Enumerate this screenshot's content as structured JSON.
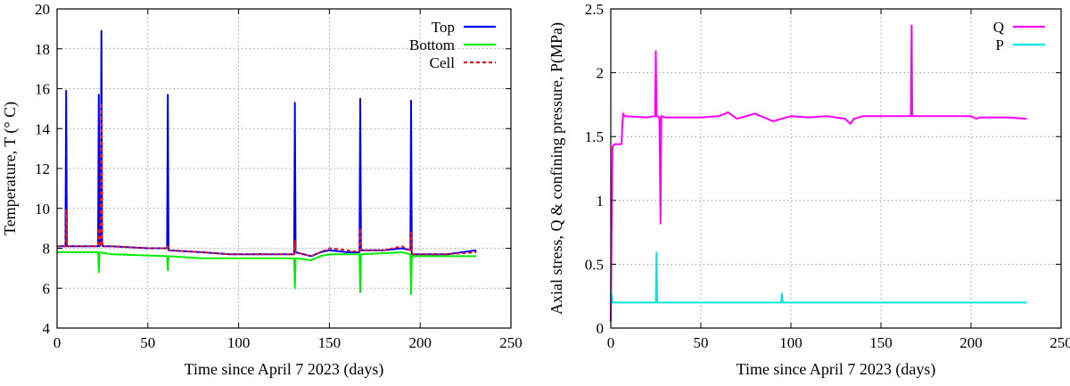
{
  "chart_data": [
    {
      "type": "line",
      "xlabel": "Time since April 7 2023 (days)",
      "ylabel": "Temperature, T (° C)",
      "xlim": [
        0,
        250
      ],
      "ylim": [
        4,
        20
      ],
      "xticks": [
        "0",
        "50",
        "100",
        "150",
        "200",
        "250"
      ],
      "yticks": [
        "4",
        "6",
        "8",
        "10",
        "12",
        "14",
        "16",
        "18",
        "20"
      ],
      "grid": true,
      "legend_position": "top-right",
      "series": [
        {
          "name": "Top",
          "color": "#0000ff",
          "style": "solid",
          "x": [
            0,
            4.6,
            5,
            5.4,
            20,
            22.6,
            23,
            23.4,
            24,
            24.4,
            24.8,
            25.2,
            30,
            50,
            60.6,
            61,
            61.4,
            80,
            95,
            105,
            120,
            130.6,
            131,
            131.4,
            140,
            145,
            150,
            160,
            166.6,
            167,
            167.4,
            180,
            190,
            194.6,
            195,
            195.4,
            200,
            215,
            231
          ],
          "y": [
            8.1,
            8.1,
            15.9,
            8.1,
            8.1,
            8.1,
            15.7,
            8.1,
            8.2,
            18.9,
            8.3,
            8.1,
            8.1,
            8.0,
            8.0,
            15.7,
            7.9,
            7.8,
            7.7,
            7.7,
            7.7,
            7.7,
            15.3,
            7.8,
            7.6,
            7.8,
            7.9,
            7.8,
            7.8,
            15.5,
            7.9,
            7.9,
            8.0,
            7.9,
            15.4,
            7.7,
            7.7,
            7.7,
            7.9
          ]
        },
        {
          "name": "Bottom",
          "color": "#00ee00",
          "style": "solid",
          "x": [
            0,
            22.6,
            23,
            23.4,
            30,
            60.6,
            61,
            61.4,
            80,
            95,
            105,
            120,
            130.6,
            131,
            131.4,
            140,
            145,
            150,
            166.6,
            167,
            167.4,
            190,
            194.6,
            195,
            195.4,
            200,
            231
          ],
          "y": [
            7.8,
            7.8,
            6.8,
            7.8,
            7.7,
            7.6,
            6.9,
            7.6,
            7.5,
            7.5,
            7.5,
            7.5,
            7.5,
            6.0,
            7.5,
            7.4,
            7.6,
            7.7,
            7.7,
            5.8,
            7.7,
            7.8,
            7.7,
            5.7,
            7.6,
            7.6,
            7.6
          ]
        },
        {
          "name": "Cell",
          "color": "#e8141e",
          "style": "dashed",
          "x": [
            0,
            4.6,
            5,
            5.4,
            20,
            22.6,
            23,
            23.4,
            24,
            24.4,
            24.8,
            25.2,
            30,
            50,
            60.6,
            61,
            61.4,
            80,
            95,
            105,
            120,
            130.6,
            131,
            131.4,
            140,
            145,
            150,
            160,
            166.6,
            167,
            167.4,
            180,
            190,
            194.6,
            195,
            195.4,
            200,
            215,
            231
          ],
          "y": [
            8.1,
            8.1,
            9.9,
            8.1,
            8.1,
            8.1,
            9.0,
            8.1,
            8.1,
            15.3,
            8.4,
            8.1,
            8.1,
            8.0,
            8.0,
            8.1,
            7.9,
            7.8,
            7.7,
            7.7,
            7.7,
            7.7,
            8.4,
            7.8,
            7.6,
            7.8,
            8.0,
            7.9,
            7.8,
            9.0,
            7.9,
            7.9,
            8.1,
            7.9,
            8.8,
            7.7,
            7.7,
            7.7,
            7.8
          ]
        }
      ]
    },
    {
      "type": "line",
      "xlabel": "Time since April 7 2023 (days)",
      "ylabel": "Axial stress, Q & confining pressure, P(MPa)",
      "xlim": [
        0,
        250
      ],
      "ylim": [
        0,
        2.5
      ],
      "xticks": [
        "0",
        "50",
        "100",
        "150",
        "200",
        "250"
      ],
      "yticks": [
        "0",
        "0.5",
        "1",
        "1.5",
        "2",
        "2.5"
      ],
      "grid": true,
      "legend_position": "top-right",
      "series": [
        {
          "name": "Q",
          "color": "#ff00ff",
          "style": "solid",
          "x": [
            0,
            0.5,
            1,
            2,
            5,
            6,
            6.5,
            7,
            7.5,
            20,
            24.6,
            25,
            25.4,
            27,
            27.6,
            28,
            28.4,
            30,
            50,
            60,
            65,
            70,
            80,
            90,
            100,
            110,
            120,
            130,
            133,
            135,
            140,
            150,
            166.6,
            167,
            167.4,
            180,
            200,
            203,
            205,
            220,
            231
          ],
          "y": [
            0.05,
            0.9,
            1.42,
            1.44,
            1.44,
            1.44,
            1.62,
            1.68,
            1.66,
            1.65,
            1.66,
            2.17,
            1.66,
            1.65,
            0.82,
            1.66,
            1.66,
            1.65,
            1.65,
            1.66,
            1.69,
            1.64,
            1.68,
            1.62,
            1.66,
            1.65,
            1.66,
            1.64,
            1.6,
            1.64,
            1.66,
            1.66,
            1.66,
            2.37,
            1.66,
            1.66,
            1.66,
            1.64,
            1.65,
            1.65,
            1.64
          ]
        },
        {
          "name": "P",
          "color": "#00e5e5",
          "style": "solid",
          "x": [
            0,
            1,
            3,
            20,
            25,
            25.4,
            25.8,
            30,
            60,
            94.6,
            95,
            95.4,
            120,
            150,
            200,
            231
          ],
          "y": [
            0.3,
            0.2,
            0.2,
            0.2,
            0.2,
            0.59,
            0.2,
            0.2,
            0.2,
            0.2,
            0.27,
            0.2,
            0.2,
            0.2,
            0.2,
            0.2
          ]
        }
      ]
    }
  ]
}
